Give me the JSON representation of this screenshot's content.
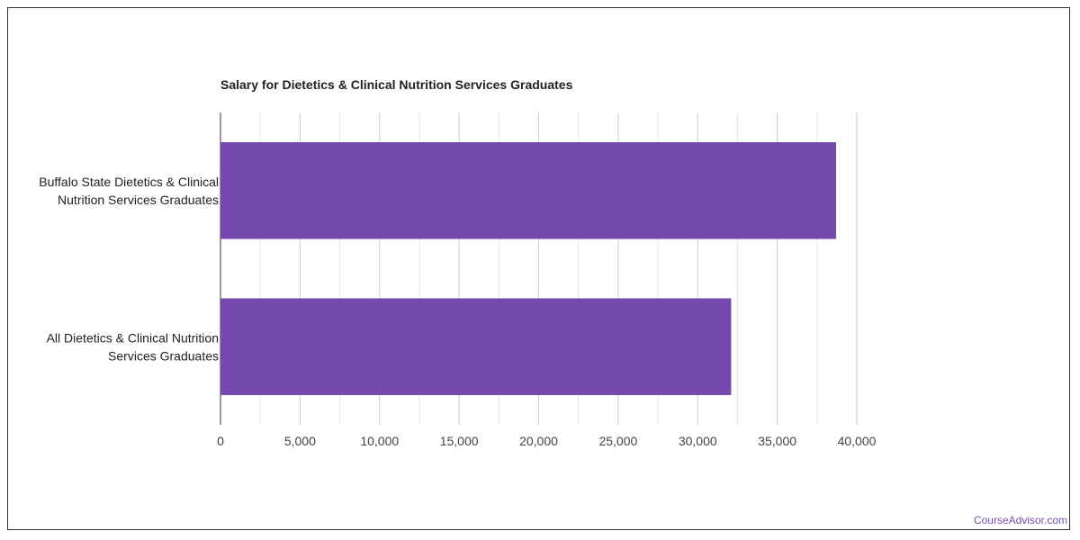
{
  "chart_data": {
    "type": "bar",
    "orientation": "horizontal",
    "title": "Salary for Dietetics & Clinical Nutrition Services Graduates",
    "categories": [
      [
        "Buffalo State Dietetics & Clinical",
        "Nutrition Services Graduates"
      ],
      [
        "All Dietetics & Clinical Nutrition",
        "Services Graduates"
      ]
    ],
    "values": [
      38700,
      32100
    ],
    "xlim": [
      0,
      40000
    ],
    "xticks": [
      0,
      5000,
      10000,
      15000,
      20000,
      25000,
      30000,
      35000,
      40000
    ],
    "xtick_labels": [
      "0",
      "5,000",
      "10,000",
      "15,000",
      "20,000",
      "25,000",
      "30,000",
      "35,000",
      "40,000"
    ],
    "bar_color": "#7549ae",
    "grid": true,
    "legend": "none"
  },
  "footer": {
    "brand": "CourseAdvisor.com"
  }
}
